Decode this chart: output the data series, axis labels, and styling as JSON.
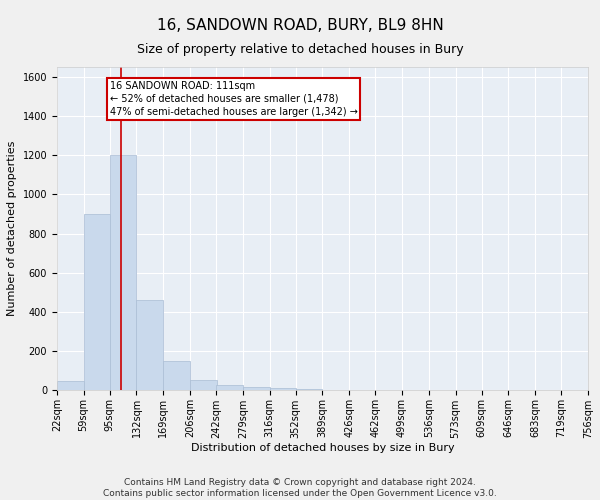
{
  "title": "16, SANDOWN ROAD, BURY, BL9 8HN",
  "subtitle": "Size of property relative to detached houses in Bury",
  "xlabel": "Distribution of detached houses by size in Bury",
  "ylabel": "Number of detached properties",
  "bar_color": "#c9d9ec",
  "bar_edge_color": "#aabdd4",
  "background_color": "#e8eef5",
  "grid_color": "#ffffff",
  "vline_x": 111,
  "vline_color": "#cc0000",
  "annotation_box_color": "#cc0000",
  "annotation_lines": [
    "16 SANDOWN ROAD: 111sqm",
    "← 52% of detached houses are smaller (1,478)",
    "47% of semi-detached houses are larger (1,342) →"
  ],
  "bin_edges": [
    22,
    59,
    95,
    132,
    169,
    206,
    242,
    279,
    316,
    352,
    389,
    426,
    462,
    499,
    536,
    573,
    609,
    646,
    683,
    719,
    756
  ],
  "bin_labels": [
    "22sqm",
    "59sqm",
    "95sqm",
    "132sqm",
    "169sqm",
    "206sqm",
    "242sqm",
    "279sqm",
    "316sqm",
    "352sqm",
    "389sqm",
    "426sqm",
    "462sqm",
    "499sqm",
    "536sqm",
    "573sqm",
    "609sqm",
    "646sqm",
    "683sqm",
    "719sqm",
    "756sqm"
  ],
  "bar_heights": [
    50,
    900,
    1200,
    460,
    150,
    55,
    30,
    20,
    15,
    10,
    0,
    0,
    0,
    0,
    0,
    0,
    0,
    0,
    0,
    0
  ],
  "ylim": [
    0,
    1650
  ],
  "yticks": [
    0,
    200,
    400,
    600,
    800,
    1000,
    1200,
    1400,
    1600
  ],
  "footer": "Contains HM Land Registry data © Crown copyright and database right 2024.\nContains public sector information licensed under the Open Government Licence v3.0.",
  "title_fontsize": 11,
  "subtitle_fontsize": 9,
  "tick_fontsize": 7,
  "ylabel_fontsize": 8,
  "xlabel_fontsize": 8,
  "footer_fontsize": 6.5,
  "ann_fontsize": 7
}
